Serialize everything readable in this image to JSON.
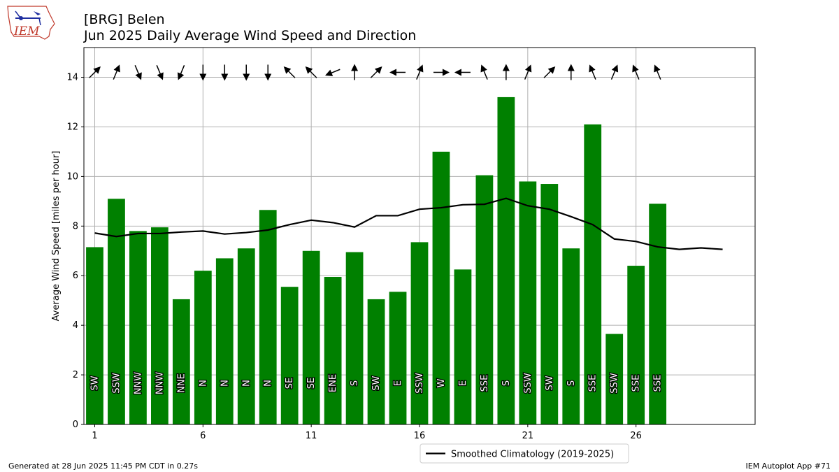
{
  "header": {
    "title_line1": "[BRG] Belen",
    "title_line2": "Jun 2025 Daily Average Wind Speed and Direction",
    "logo_text": "IEM"
  },
  "footer": {
    "left": "Generated at 28 Jun 2025 11:45 PM CDT in 0.27s",
    "right": "IEM Autoplot App #71"
  },
  "chart_data": {
    "type": "bar",
    "ylabel": "Average Wind Speed [miles per hour]",
    "xlabel": "",
    "xlim": [
      0.5,
      31.5
    ],
    "ylim": [
      0,
      15.2
    ],
    "yticks": [
      0,
      2,
      4,
      6,
      8,
      10,
      12,
      14
    ],
    "xticks": [
      1,
      6,
      11,
      16,
      21,
      26
    ],
    "grid": true,
    "bar_color": "#008000",
    "line_color": "#000000",
    "days": [
      1,
      2,
      3,
      4,
      5,
      6,
      7,
      8,
      9,
      10,
      11,
      12,
      13,
      14,
      15,
      16,
      17,
      18,
      19,
      20,
      21,
      22,
      23,
      24,
      25,
      26,
      27
    ],
    "values": [
      7.15,
      9.1,
      7.8,
      7.95,
      5.05,
      6.2,
      6.7,
      7.1,
      8.65,
      5.55,
      7.0,
      5.95,
      6.95,
      5.05,
      5.35,
      7.35,
      11.0,
      6.25,
      10.05,
      13.2,
      9.8,
      9.7,
      7.1,
      12.1,
      3.65,
      6.4,
      8.9
    ],
    "directions": [
      "SW",
      "SSW",
      "NNW",
      "NNW",
      "NNE",
      "N",
      "N",
      "N",
      "N",
      "SE",
      "SE",
      "ENE",
      "S",
      "SW",
      "E",
      "SSW",
      "W",
      "E",
      "SSE",
      "S",
      "SSW",
      "SW",
      "S",
      "SSE",
      "SSW",
      "SSE",
      "SSE"
    ],
    "climatology": {
      "name": "Smoothed Climatology (2019-2025)",
      "x": [
        1,
        2,
        3,
        4,
        5,
        6,
        7,
        8,
        9,
        10,
        11,
        12,
        13,
        14,
        15,
        16,
        17,
        18,
        19,
        20,
        21,
        22,
        23,
        24,
        25,
        26,
        27,
        28,
        29,
        30
      ],
      "values": [
        7.72,
        7.58,
        7.7,
        7.7,
        7.76,
        7.8,
        7.68,
        7.74,
        7.84,
        8.06,
        8.24,
        8.14,
        7.96,
        8.42,
        8.42,
        8.68,
        8.74,
        8.86,
        8.88,
        9.12,
        8.82,
        8.68,
        8.38,
        8.06,
        7.48,
        7.38,
        7.16,
        7.06,
        7.12,
        7.06
      ]
    },
    "legend_position": "bottom-center, below plot"
  }
}
